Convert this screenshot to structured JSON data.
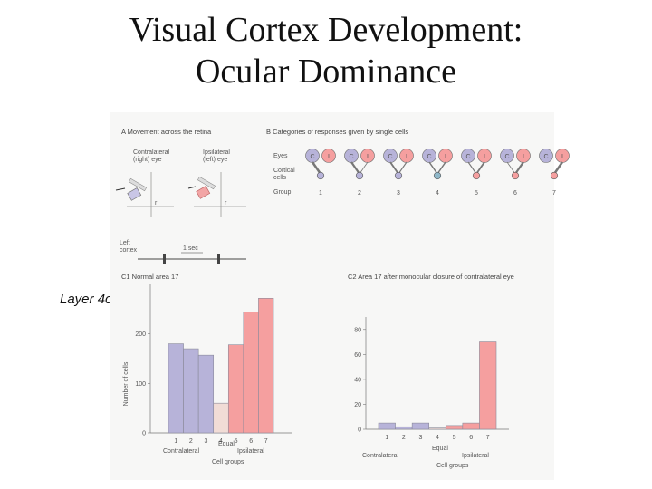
{
  "slide": {
    "title_line1": "Visual Cortex Development:",
    "title_line2": "Ocular Dominance",
    "side_label": "Layer 4c"
  },
  "panel_a": {
    "title": "A  Movement across the retina",
    "contra_label_1": "Contralateral",
    "contra_label_2": "(right) eye",
    "ipsi_label_1": "Ipsilateral",
    "ipsi_label_2": "(left) eye",
    "cortex_label_1": "Left",
    "cortex_label_2": "cortex",
    "timescale": "1 sec",
    "axis_mark_contra": "r",
    "axis_mark_ipsi": "r"
  },
  "panel_b": {
    "title": "B  Categories of responses given by single cells",
    "row_eyes": "Eyes",
    "row_cortical_1": "Cortical",
    "row_cortical_2": "cells",
    "row_group": "Group",
    "eye_letters": [
      "C",
      "I"
    ],
    "groups": [
      "1",
      "2",
      "3",
      "4",
      "5",
      "6",
      "7"
    ]
  },
  "chart_data": [
    {
      "type": "bar",
      "title": "C1  Normal area 17",
      "categories": [
        "1",
        "2",
        "3",
        "4",
        "5",
        "6",
        "7"
      ],
      "values": [
        180,
        170,
        157,
        60,
        178,
        244,
        272
      ],
      "ylabel": "Number of cells",
      "xlabel": "Cell groups",
      "yticks": [
        0,
        100,
        200
      ],
      "ylim": [
        0,
        300
      ],
      "group_labels": {
        "left": "Contralateral",
        "center": "Equal",
        "right": "Ipsilateral"
      },
      "colors": [
        "#b7b3d9",
        "#b7b3d9",
        "#b7b3d9",
        "#f1dcd6",
        "#f59f9f",
        "#f59f9f",
        "#f59f9f"
      ]
    },
    {
      "type": "bar",
      "title": "C2  Area 17 after monocular closure of contralateral eye",
      "categories": [
        "1",
        "2",
        "3",
        "4",
        "5",
        "6",
        "7"
      ],
      "values": [
        5,
        2,
        5,
        1,
        3,
        5,
        70
      ],
      "ylabel": "",
      "xlabel": "Cell groups",
      "yticks": [
        0,
        20,
        40,
        60,
        80
      ],
      "ylim": [
        0,
        90
      ],
      "group_labels": {
        "left": "Contralateral",
        "center": "Equal",
        "right": "Ipsilateral"
      },
      "colors": [
        "#b7b3d9",
        "#b7b3d9",
        "#b7b3d9",
        "#f1dcd6",
        "#f59f9f",
        "#f59f9f",
        "#f59f9f"
      ]
    }
  ],
  "colors": {
    "contra": "#b7b3d9",
    "ipsi": "#f59f9f",
    "cortical": "#8fb7c8",
    "neutral": "#f1dcd6"
  }
}
